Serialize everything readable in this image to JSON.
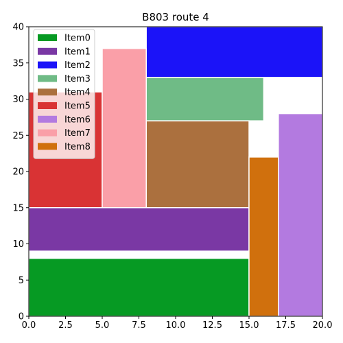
{
  "chart_data": {
    "type": "rectangle-packing",
    "title": "B803 route 4",
    "xlabel": "",
    "ylabel": "",
    "xlim": [
      0,
      20
    ],
    "ylim": [
      0,
      40
    ],
    "x_ticks": [
      "0.0",
      "2.5",
      "5.0",
      "7.5",
      "10.0",
      "12.5",
      "15.0",
      "17.5",
      "20.0"
    ],
    "y_ticks": [
      "0",
      "5",
      "10",
      "15",
      "20",
      "25",
      "30",
      "35",
      "40"
    ],
    "legend_position": "top-left",
    "grid": false,
    "items": [
      {
        "name": "Item0",
        "x": 0,
        "y": 0,
        "w": 15,
        "h": 8,
        "color": "#069a23"
      },
      {
        "name": "Item1",
        "x": 0,
        "y": 9,
        "w": 15,
        "h": 6,
        "color": "#7a38a4"
      },
      {
        "name": "Item2",
        "x": 8,
        "y": 33,
        "w": 12,
        "h": 7,
        "color": "#1b13f8"
      },
      {
        "name": "Item3",
        "x": 8,
        "y": 27,
        "w": 8,
        "h": 6,
        "color": "#6fbb86"
      },
      {
        "name": "Item4",
        "x": 8,
        "y": 15,
        "w": 7,
        "h": 12,
        "color": "#ab703e"
      },
      {
        "name": "Item5",
        "x": 0,
        "y": 15,
        "w": 5,
        "h": 16,
        "color": "#d93334"
      },
      {
        "name": "Item6",
        "x": 17,
        "y": 0,
        "w": 3,
        "h": 28,
        "color": "#b37ae0"
      },
      {
        "name": "Item7",
        "x": 5,
        "y": 15,
        "w": 3,
        "h": 22,
        "color": "#fa9fa8"
      },
      {
        "name": "Item8",
        "x": 15,
        "y": 0,
        "w": 2,
        "h": 22,
        "color": "#d0700d"
      }
    ]
  }
}
